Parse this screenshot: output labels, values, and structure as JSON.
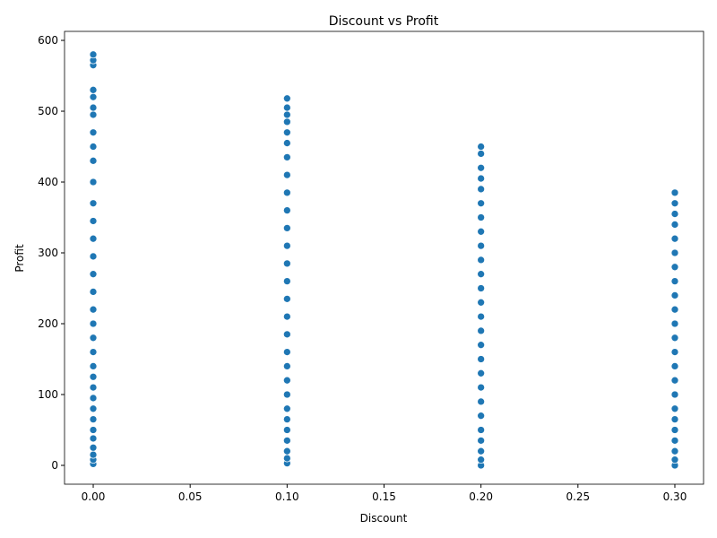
{
  "chart_data": {
    "type": "scatter",
    "title": "Discount vs Profit",
    "x_label": "Discount",
    "y_label": "Profit",
    "color": "#1f77b4",
    "x": [
      0,
      0,
      0,
      0,
      0,
      0,
      0,
      0,
      0,
      0,
      0,
      0,
      0,
      0,
      0,
      0,
      0,
      0,
      0,
      0,
      0,
      0,
      0,
      0,
      0,
      0,
      0,
      0,
      0,
      0,
      0,
      0,
      0,
      0.1,
      0.1,
      0.1,
      0.1,
      0.1,
      0.1,
      0.1,
      0.1,
      0.1,
      0.1,
      0.1,
      0.1,
      0.1,
      0.1,
      0.1,
      0.1,
      0.1,
      0.1,
      0.1,
      0.1,
      0.1,
      0.1,
      0.1,
      0.1,
      0.1,
      0.1,
      0.1,
      0.1,
      0.2,
      0.2,
      0.2,
      0.2,
      0.2,
      0.2,
      0.2,
      0.2,
      0.2,
      0.2,
      0.2,
      0.2,
      0.2,
      0.2,
      0.2,
      0.2,
      0.2,
      0.2,
      0.2,
      0.2,
      0.2,
      0.2,
      0.2,
      0.2,
      0.2,
      0.2,
      0.3,
      0.3,
      0.3,
      0.3,
      0.3,
      0.3,
      0.3,
      0.3,
      0.3,
      0.3,
      0.3,
      0.3,
      0.3,
      0.3,
      0.3,
      0.3,
      0.3,
      0.3,
      0.3,
      0.3,
      0.3,
      0.3,
      0.3
    ],
    "values": [
      2,
      8,
      15,
      25,
      38,
      50,
      65,
      80,
      95,
      110,
      125,
      140,
      160,
      180,
      200,
      220,
      245,
      270,
      295,
      320,
      345,
      370,
      400,
      430,
      450,
      470,
      495,
      505,
      520,
      530,
      565,
      572,
      580,
      3,
      10,
      20,
      35,
      50,
      65,
      80,
      100,
      120,
      140,
      160,
      185,
      210,
      235,
      260,
      285,
      310,
      335,
      360,
      385,
      410,
      435,
      455,
      470,
      485,
      495,
      505,
      518,
      0,
      8,
      20,
      35,
      50,
      70,
      90,
      110,
      130,
      150,
      170,
      190,
      210,
      230,
      250,
      270,
      290,
      310,
      330,
      350,
      370,
      390,
      405,
      420,
      440,
      450,
      0,
      8,
      20,
      35,
      50,
      65,
      80,
      100,
      120,
      140,
      160,
      180,
      200,
      220,
      240,
      260,
      280,
      300,
      320,
      340,
      355,
      370,
      385
    ],
    "xlim": [
      -0.0148,
      0.3148
    ],
    "ylim": [
      -26.6,
      612.7
    ],
    "xticks": [
      {
        "value": 0,
        "label": "0.00"
      },
      {
        "value": 0.05,
        "label": "0.05"
      },
      {
        "value": 0.1,
        "label": "0.10"
      },
      {
        "value": 0.15,
        "label": "0.15"
      },
      {
        "value": 0.2,
        "label": "0.20"
      },
      {
        "value": 0.25,
        "label": "0.25"
      },
      {
        "value": 0.3,
        "label": "0.30"
      }
    ],
    "yticks": [
      0,
      100,
      200,
      300,
      400,
      500,
      600
    ]
  }
}
